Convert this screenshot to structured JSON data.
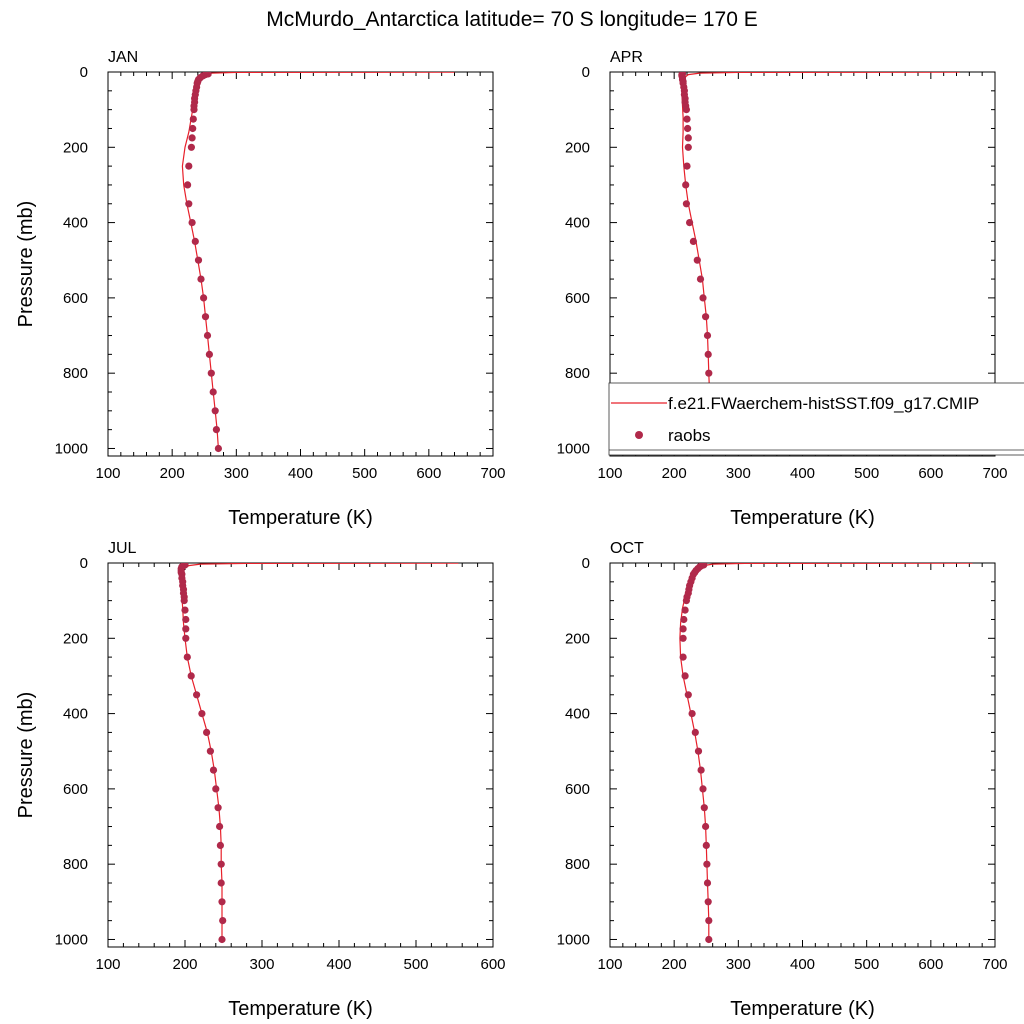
{
  "title": "McMurdo_Antarctica  latitude= 70 S longitude= 170 E",
  "colors": {
    "model_line": "#e8202a",
    "obs_marker": "#b0294a",
    "axes": "#000000"
  },
  "legend": {
    "model_label": "f.e21.FWaerchem-histSST.f09_g17.CMIP",
    "obs_label": "raobs",
    "placement": "lower-right of APR panel"
  },
  "chart_data": [
    {
      "type": "scatter",
      "panel_label": "JAN",
      "xlabel": "Temperature (K)",
      "ylabel": "Pressure (mb)",
      "xlim": [
        100,
        700
      ],
      "ylim": [
        1020,
        0
      ],
      "xticks": [
        100,
        200,
        300,
        400,
        500,
        600,
        700
      ],
      "yticks": [
        0,
        200,
        400,
        600,
        800,
        1000
      ],
      "y_inverted": true,
      "series": [
        {
          "name": "f.e21.FWaerchem-histSST.f09_g17.CMIP",
          "kind": "line",
          "points": [
            [
              640,
              0.5
            ],
            [
              300,
              1
            ],
            [
              262,
              3
            ],
            [
              250,
              7
            ],
            [
              244,
              15
            ],
            [
              240,
              25
            ],
            [
              237,
              40
            ],
            [
              235,
              60
            ],
            [
              233,
              90
            ],
            [
              230,
              120
            ],
            [
              226,
              160
            ],
            [
              220,
              200
            ],
            [
              216,
              250
            ],
            [
              218,
              300
            ],
            [
              223,
              350
            ],
            [
              229,
              400
            ],
            [
              235,
              450
            ],
            [
              240,
              500
            ],
            [
              245,
              550
            ],
            [
              249,
              600
            ],
            [
              252,
              650
            ],
            [
              255,
              700
            ],
            [
              258,
              750
            ],
            [
              261,
              800
            ],
            [
              264,
              850
            ],
            [
              267,
              900
            ],
            [
              270,
              950
            ],
            [
              272,
              1000
            ]
          ]
        },
        {
          "name": "raobs",
          "kind": "marker",
          "points": [
            [
              256,
              5
            ],
            [
              252,
              7
            ],
            [
              248,
              10
            ],
            [
              244,
              15
            ],
            [
              241,
              20
            ],
            [
              240,
              25
            ],
            [
              239,
              30
            ],
            [
              238,
              40
            ],
            [
              237,
              50
            ],
            [
              236,
              60
            ],
            [
              235,
              70
            ],
            [
              235,
              80
            ],
            [
              234,
              90
            ],
            [
              234,
              100
            ],
            [
              233,
              125
            ],
            [
              232,
              150
            ],
            [
              231,
              175
            ],
            [
              230,
              200
            ],
            [
              226,
              250
            ],
            [
              224,
              300
            ],
            [
              226,
              350
            ],
            [
              231,
              400
            ],
            [
              236,
              450
            ],
            [
              241,
              500
            ],
            [
              245,
              550
            ],
            [
              249,
              600
            ],
            [
              252,
              650
            ],
            [
              255,
              700
            ],
            [
              258,
              750
            ],
            [
              261,
              800
            ],
            [
              264,
              850
            ],
            [
              267,
              900
            ],
            [
              269,
              950
            ],
            [
              272,
              1000
            ]
          ]
        }
      ]
    },
    {
      "type": "scatter",
      "panel_label": "APR",
      "xlabel": "Temperature (K)",
      "ylabel": "",
      "xlim": [
        100,
        700
      ],
      "ylim": [
        1020,
        0
      ],
      "xticks": [
        100,
        200,
        300,
        400,
        500,
        600,
        700
      ],
      "yticks": [
        0,
        200,
        400,
        600,
        800,
        1000
      ],
      "y_inverted": true,
      "series": [
        {
          "name": "f.e21.FWaerchem-histSST.f09_g17.CMIP",
          "kind": "line",
          "points": [
            [
              645,
              0.5
            ],
            [
              300,
              1
            ],
            [
              240,
              3
            ],
            [
              222,
              7
            ],
            [
              216,
              15
            ],
            [
              213,
              25
            ],
            [
              212,
              40
            ],
            [
              212,
              60
            ],
            [
              213,
              90
            ],
            [
              214,
              120
            ],
            [
              214,
              160
            ],
            [
              213,
              200
            ],
            [
              215,
              250
            ],
            [
              218,
              300
            ],
            [
              222,
              350
            ],
            [
              228,
              400
            ],
            [
              234,
              450
            ],
            [
              239,
              500
            ],
            [
              244,
              550
            ],
            [
              247,
              600
            ],
            [
              250,
              650
            ],
            [
              252,
              700
            ],
            [
              253,
              750
            ],
            [
              254,
              800
            ],
            [
              255,
              850
            ],
            [
              256,
              900
            ],
            [
              257,
              950
            ],
            [
              257,
              1000
            ]
          ]
        },
        {
          "name": "raobs",
          "kind": "marker",
          "points": [
            [
              213,
              5
            ],
            [
              212,
              7
            ],
            [
              212,
              10
            ],
            [
              213,
              15
            ],
            [
              213,
              20
            ],
            [
              214,
              25
            ],
            [
              214,
              30
            ],
            [
              215,
              40
            ],
            [
              216,
              50
            ],
            [
              216,
              60
            ],
            [
              217,
              70
            ],
            [
              217,
              80
            ],
            [
              218,
              90
            ],
            [
              219,
              100
            ],
            [
              220,
              125
            ],
            [
              221,
              150
            ],
            [
              222,
              175
            ],
            [
              222,
              200
            ],
            [
              220,
              250
            ],
            [
              218,
              300
            ],
            [
              219,
              350
            ],
            [
              224,
              400
            ],
            [
              230,
              450
            ],
            [
              236,
              500
            ],
            [
              241,
              550
            ],
            [
              245,
              600
            ],
            [
              249,
              650
            ],
            [
              252,
              700
            ],
            [
              253,
              750
            ],
            [
              254,
              800
            ],
            [
              255,
              850
            ],
            [
              256,
              900
            ],
            [
              257,
              950
            ],
            [
              257,
              1000
            ]
          ]
        }
      ]
    },
    {
      "type": "scatter",
      "panel_label": "JUL",
      "xlabel": "Temperature (K)",
      "ylabel": "Pressure (mb)",
      "xlim": [
        100,
        600
      ],
      "ylim": [
        1020,
        0
      ],
      "xticks": [
        100,
        200,
        300,
        400,
        500,
        600
      ],
      "yticks": [
        0,
        200,
        400,
        600,
        800,
        1000
      ],
      "y_inverted": true,
      "series": [
        {
          "name": "f.e21.FWaerchem-histSST.f09_g17.CMIP",
          "kind": "line",
          "points": [
            [
              555,
              0.5
            ],
            [
              280,
              1
            ],
            [
              220,
              3
            ],
            [
              205,
              7
            ],
            [
              199,
              15
            ],
            [
              196,
              25
            ],
            [
              195,
              40
            ],
            [
              195,
              60
            ],
            [
              196,
              90
            ],
            [
              197,
              120
            ],
            [
              198,
              160
            ],
            [
              200,
              200
            ],
            [
              203,
              250
            ],
            [
              208,
              300
            ],
            [
              215,
              350
            ],
            [
              222,
              400
            ],
            [
              229,
              450
            ],
            [
              234,
              500
            ],
            [
              238,
              550
            ],
            [
              241,
              600
            ],
            [
              244,
              650
            ],
            [
              246,
              700
            ],
            [
              247,
              750
            ],
            [
              247,
              800
            ],
            [
              248,
              850
            ],
            [
              248,
              900
            ],
            [
              248,
              950
            ],
            [
              248,
              1000
            ]
          ]
        },
        {
          "name": "raobs",
          "kind": "marker",
          "points": [
            [
              200,
              5
            ],
            [
              198,
              7
            ],
            [
              196,
              10
            ],
            [
              195,
              15
            ],
            [
              195,
              20
            ],
            [
              195,
              25
            ],
            [
              196,
              30
            ],
            [
              196,
              40
            ],
            [
              197,
              50
            ],
            [
              197,
              60
            ],
            [
              198,
              70
            ],
            [
              198,
              80
            ],
            [
              199,
              90
            ],
            [
              199,
              100
            ],
            [
              200,
              125
            ],
            [
              201,
              150
            ],
            [
              201,
              175
            ],
            [
              201,
              200
            ],
            [
              203,
              250
            ],
            [
              208,
              300
            ],
            [
              215,
              350
            ],
            [
              222,
              400
            ],
            [
              228,
              450
            ],
            [
              233,
              500
            ],
            [
              237,
              550
            ],
            [
              240,
              600
            ],
            [
              243,
              650
            ],
            [
              245,
              700
            ],
            [
              246,
              750
            ],
            [
              247,
              800
            ],
            [
              247,
              850
            ],
            [
              248,
              900
            ],
            [
              249,
              950
            ],
            [
              248,
              1000
            ]
          ]
        }
      ]
    },
    {
      "type": "scatter",
      "panel_label": "OCT",
      "xlabel": "Temperature (K)",
      "ylabel": "",
      "xlim": [
        100,
        700
      ],
      "ylim": [
        1020,
        0
      ],
      "xticks": [
        100,
        200,
        300,
        400,
        500,
        600,
        700
      ],
      "yticks": [
        0,
        200,
        400,
        600,
        800,
        1000
      ],
      "y_inverted": true,
      "series": [
        {
          "name": "f.e21.FWaerchem-histSST.f09_g17.CMIP",
          "kind": "line",
          "points": [
            [
              665,
              0.5
            ],
            [
              310,
              1
            ],
            [
              260,
              3
            ],
            [
              246,
              7
            ],
            [
              238,
              15
            ],
            [
              232,
              25
            ],
            [
              226,
              40
            ],
            [
              221,
              60
            ],
            [
              217,
              90
            ],
            [
              213,
              120
            ],
            [
              210,
              160
            ],
            [
              209,
              200
            ],
            [
              210,
              250
            ],
            [
              214,
              300
            ],
            [
              220,
              350
            ],
            [
              226,
              400
            ],
            [
              232,
              450
            ],
            [
              237,
              500
            ],
            [
              241,
              550
            ],
            [
              244,
              600
            ],
            [
              247,
              650
            ],
            [
              249,
              700
            ],
            [
              250,
              750
            ],
            [
              251,
              800
            ],
            [
              252,
              850
            ],
            [
              253,
              900
            ],
            [
              254,
              950
            ],
            [
              254,
              1000
            ]
          ]
        },
        {
          "name": "raobs",
          "kind": "marker",
          "points": [
            [
              246,
              5
            ],
            [
              243,
              7
            ],
            [
              240,
              10
            ],
            [
              237,
              15
            ],
            [
              234,
              20
            ],
            [
              232,
              25
            ],
            [
              230,
              30
            ],
            [
              228,
              40
            ],
            [
              226,
              50
            ],
            [
              224,
              60
            ],
            [
              223,
              70
            ],
            [
              222,
              80
            ],
            [
              220,
              90
            ],
            [
              219,
              100
            ],
            [
              217,
              125
            ],
            [
              215,
              150
            ],
            [
              214,
              175
            ],
            [
              214,
              200
            ],
            [
              214,
              250
            ],
            [
              217,
              300
            ],
            [
              222,
              350
            ],
            [
              228,
              400
            ],
            [
              233,
              450
            ],
            [
              238,
              500
            ],
            [
              242,
              550
            ],
            [
              245,
              600
            ],
            [
              247,
              650
            ],
            [
              249,
              700
            ],
            [
              250,
              750
            ],
            [
              251,
              800
            ],
            [
              252,
              850
            ],
            [
              253,
              900
            ],
            [
              254,
              950
            ],
            [
              254,
              1000
            ]
          ]
        }
      ]
    }
  ]
}
